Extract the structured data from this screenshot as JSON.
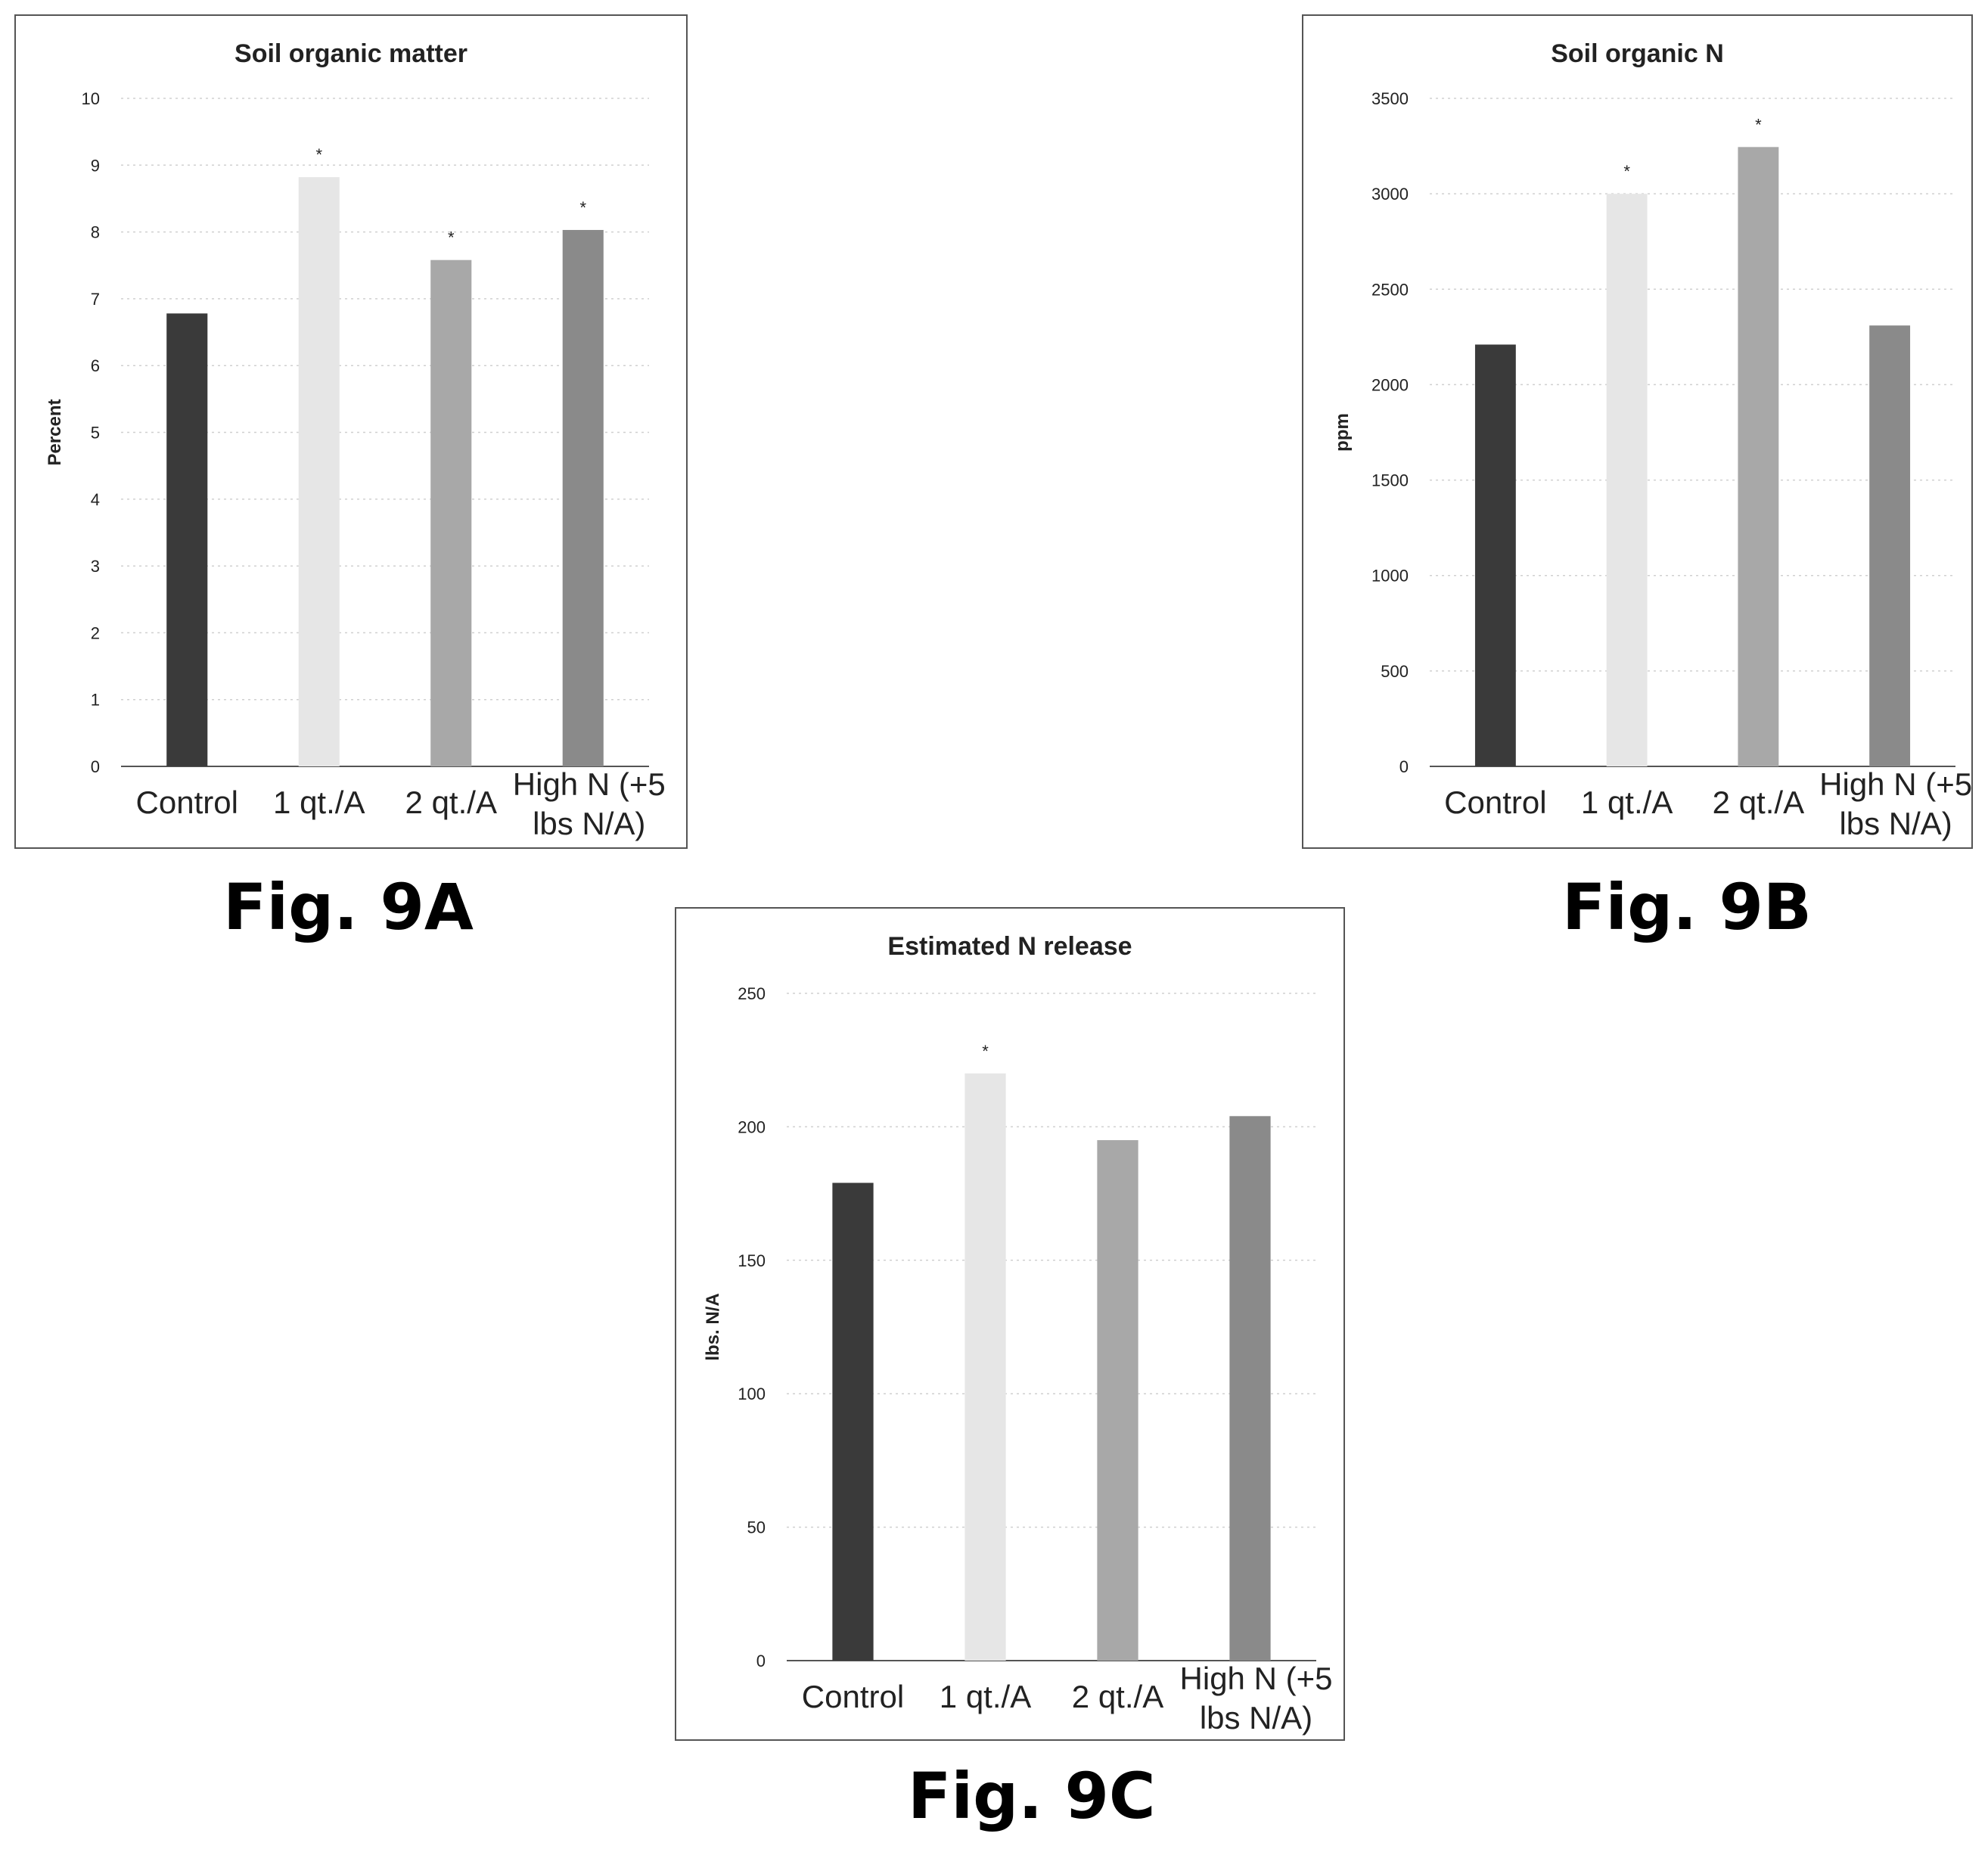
{
  "figure_labels": [
    "Fig. 9A",
    "Fig. 9B",
    "Fig. 9C"
  ],
  "chart_data": [
    {
      "type": "bar",
      "title": "Soil organic matter",
      "ylabel": "Percent",
      "xlabel": "",
      "categories": [
        "Control",
        "1 qt./A",
        "2 qt./A",
        "High N (+5 lbs N/A)"
      ],
      "values": [
        6.78,
        8.82,
        7.58,
        8.03
      ],
      "significance": [
        "",
        "*",
        "*",
        "*"
      ],
      "ylim": [
        0,
        10
      ],
      "yticks": [
        "0",
        "1",
        "2",
        "3",
        "4",
        "5",
        "6",
        "7",
        "8",
        "9",
        "10"
      ],
      "grid": true,
      "bar_colors": [
        "#3a3a3a",
        "#e6e6e6",
        "#a8a8a8",
        "#8a8a8a"
      ]
    },
    {
      "type": "bar",
      "title": "Soil organic N",
      "ylabel": "ppm",
      "xlabel": "",
      "categories": [
        "Control",
        "1 qt./A",
        "2 qt./A",
        "High N (+5 lbs N/A)"
      ],
      "values": [
        2210,
        3000,
        3245,
        2310
      ],
      "significance": [
        "",
        "*",
        "*",
        ""
      ],
      "ylim": [
        0,
        3500
      ],
      "yticks": [
        "0",
        "500",
        "1000",
        "1500",
        "2000",
        "2500",
        "3000",
        "3500"
      ],
      "grid": true,
      "bar_colors": [
        "#3a3a3a",
        "#e6e6e6",
        "#a8a8a8",
        "#8a8a8a"
      ]
    },
    {
      "type": "bar",
      "title": "Estimated N release",
      "ylabel": "lbs. N/A",
      "xlabel": "",
      "categories": [
        "Control",
        "1 qt./A",
        "2 qt./A",
        "High N (+5 lbs N/A)"
      ],
      "values": [
        179,
        220,
        195,
        204
      ],
      "significance": [
        "",
        "*",
        "",
        ""
      ],
      "ylim": [
        0,
        250
      ],
      "yticks": [
        "0",
        "50",
        "100",
        "150",
        "200",
        "250"
      ],
      "grid": true,
      "bar_colors": [
        "#3a3a3a",
        "#e6e6e6",
        "#a8a8a8",
        "#8a8a8a"
      ]
    }
  ]
}
